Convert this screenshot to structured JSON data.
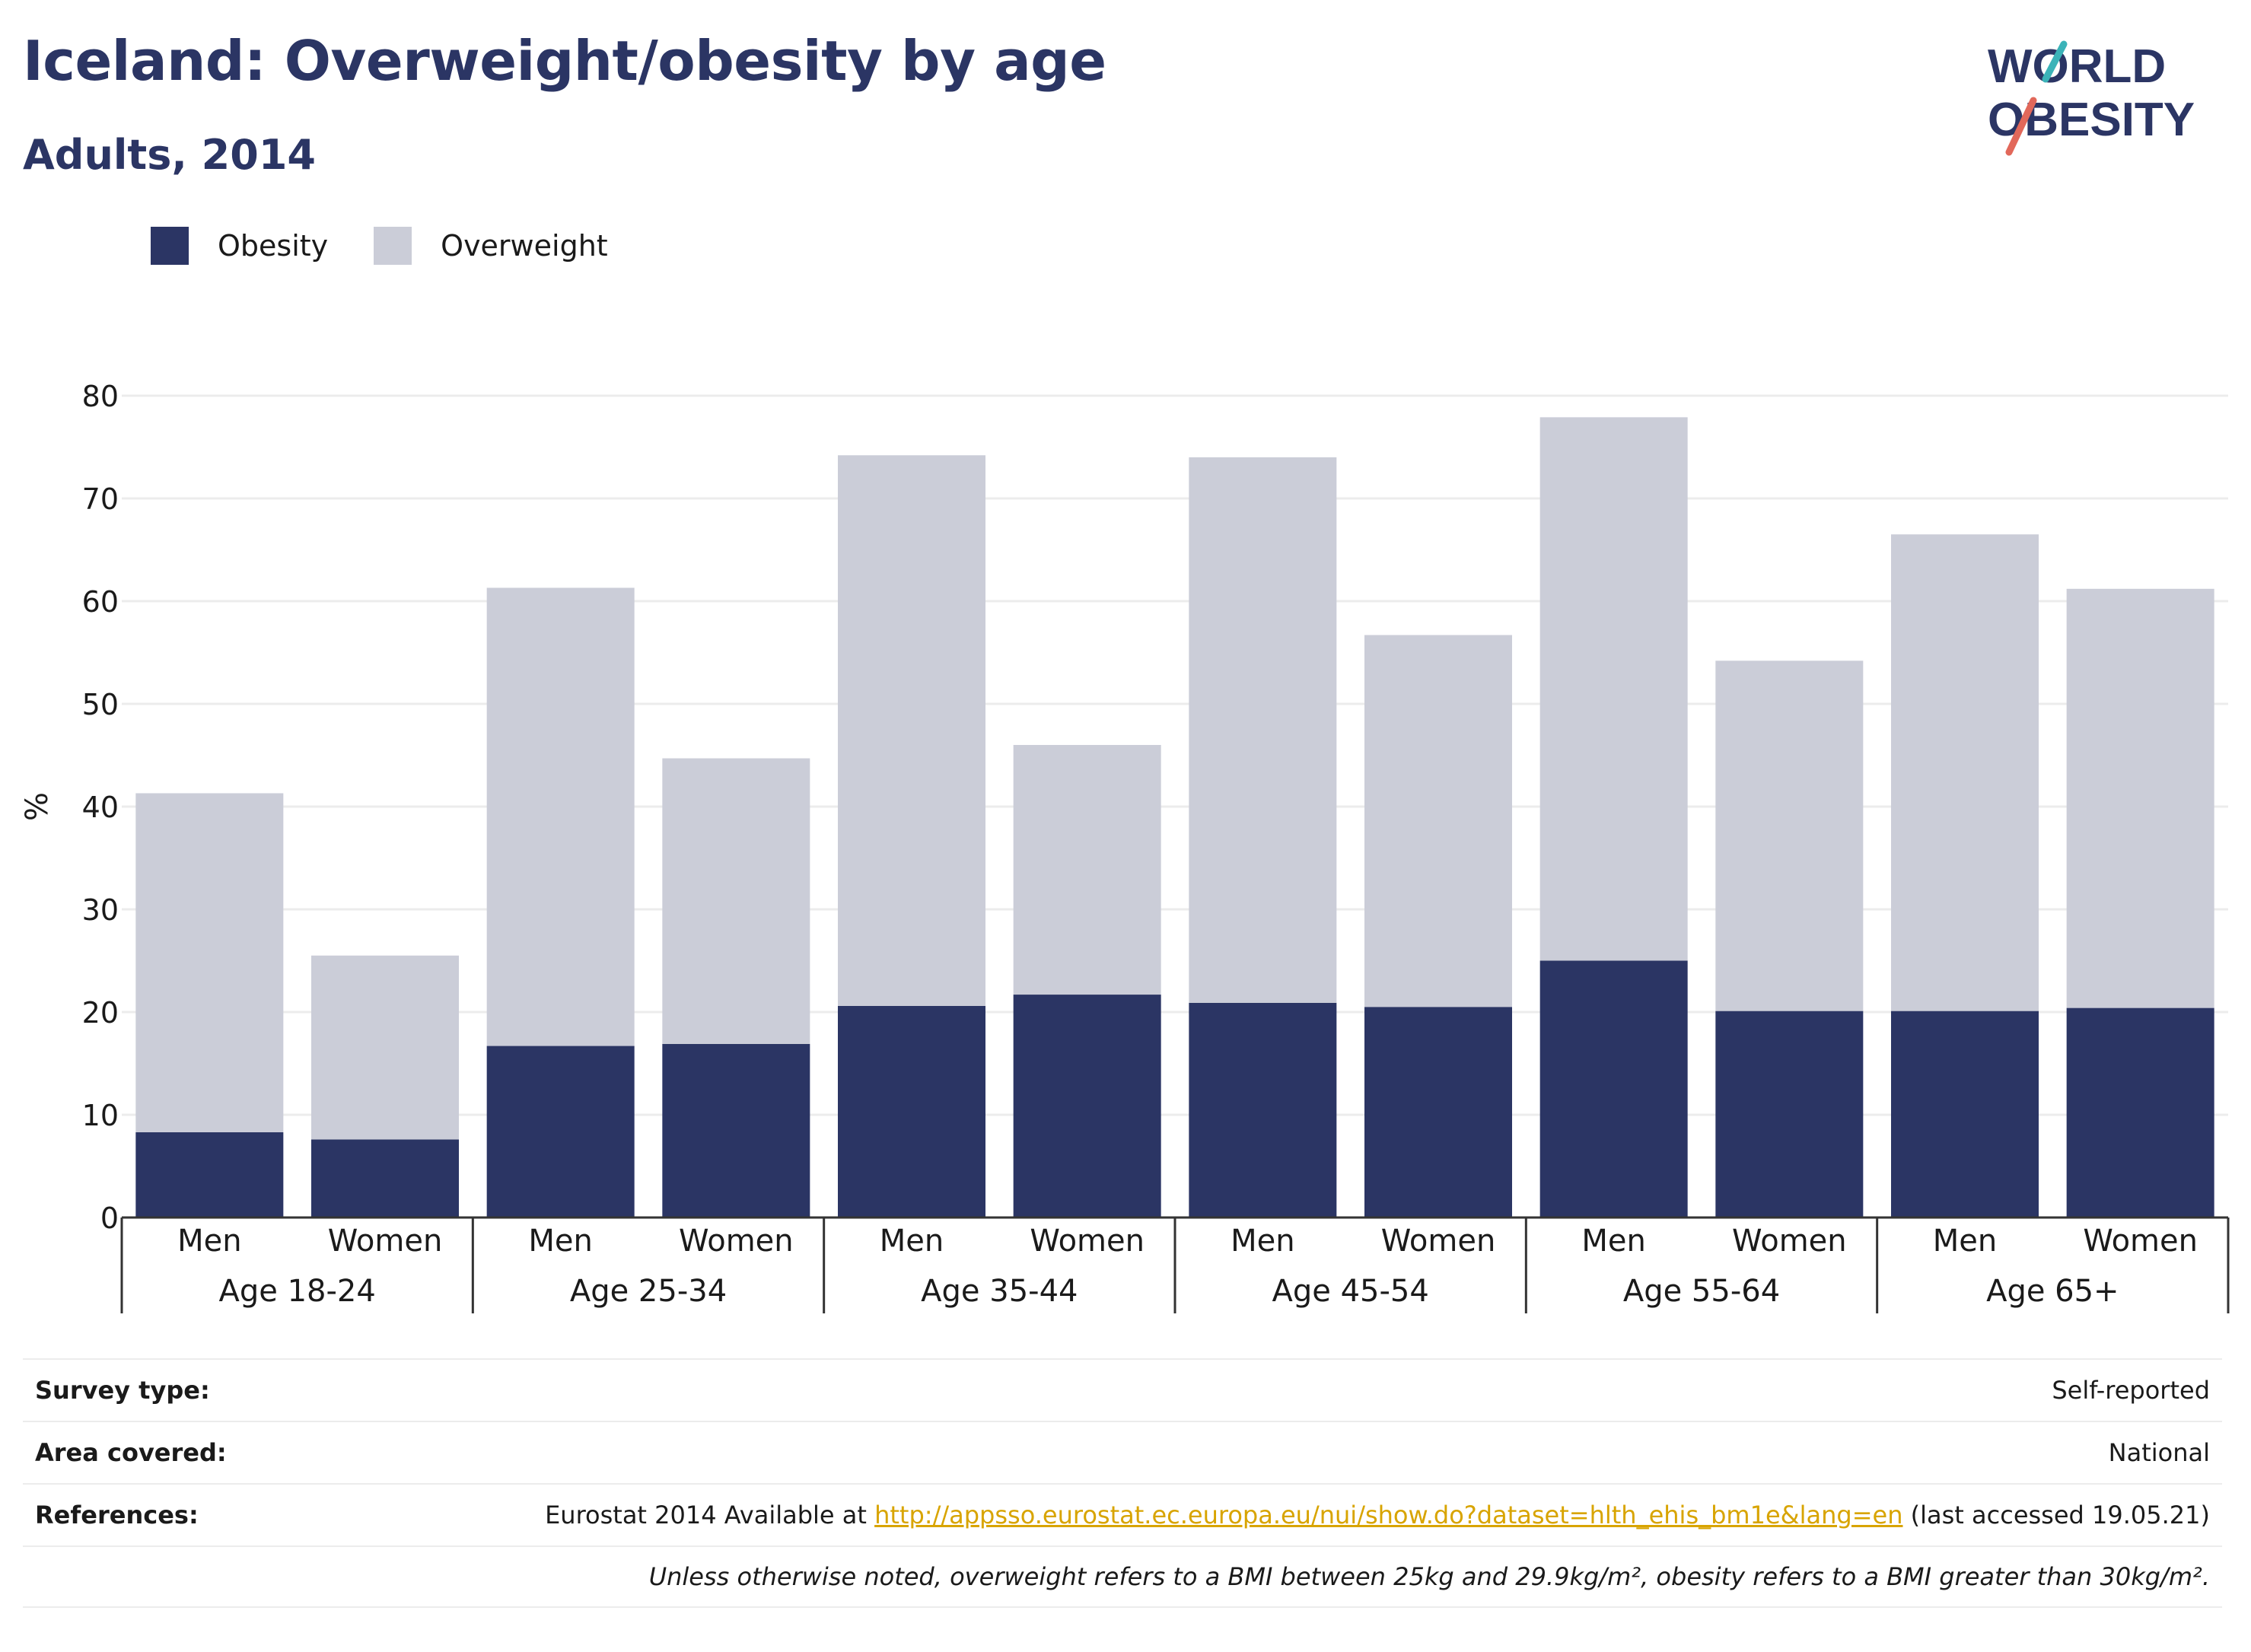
{
  "header": {
    "title": "Iceland: Overweight/obesity by age",
    "subtitle": "Adults, 2014"
  },
  "logo": {
    "line1": "WORLD",
    "line2": "OBESITY",
    "colors": {
      "text": "#2b3564",
      "accent_teal": "#3bb3b8",
      "accent_red": "#e2685a"
    }
  },
  "colors": {
    "obesity": "#2b3564",
    "overweight": "#cbcdd8",
    "grid": "#ececec",
    "axis": "#333333",
    "link": "#d8a400"
  },
  "chart_data": {
    "type": "bar",
    "stacked": true,
    "ylabel": "%",
    "ylim": [
      0,
      80
    ],
    "yticks": [
      0,
      10,
      20,
      30,
      40,
      50,
      60,
      70,
      80
    ],
    "grid": true,
    "legend_position": "top-left",
    "groups": [
      "Age 18-24",
      "Age 25-34",
      "Age 35-44",
      "Age 45-54",
      "Age 55-64",
      "Age 65+"
    ],
    "sub_categories": [
      "Men",
      "Women"
    ],
    "series": [
      {
        "name": "Obesity",
        "values": [
          8.3,
          7.6,
          16.7,
          16.9,
          20.6,
          21.7,
          20.9,
          20.5,
          25.0,
          20.1,
          20.1,
          20.4
        ]
      },
      {
        "name": "Overweight",
        "values": [
          33.0,
          17.9,
          44.6,
          27.8,
          53.6,
          24.3,
          53.1,
          36.2,
          52.9,
          34.1,
          46.4,
          40.8
        ]
      }
    ]
  },
  "meta": {
    "survey_type": {
      "label": "Survey type:",
      "value": "Self-reported"
    },
    "area_covered": {
      "label": "Area covered:",
      "value": "National"
    },
    "references": {
      "label": "References:",
      "prefix": "Eurostat 2014 Available at",
      "link": "http://appsso.eurostat.ec.europa.eu/nui/show.do?dataset=hlth_ehis_bm1e&lang=en",
      "suffix": "(last accessed 19.05.21)"
    },
    "note": "Unless otherwise noted, overweight refers to a BMI between 25kg and 29.9kg/m², obesity refers to a BMI greater than 30kg/m²."
  }
}
